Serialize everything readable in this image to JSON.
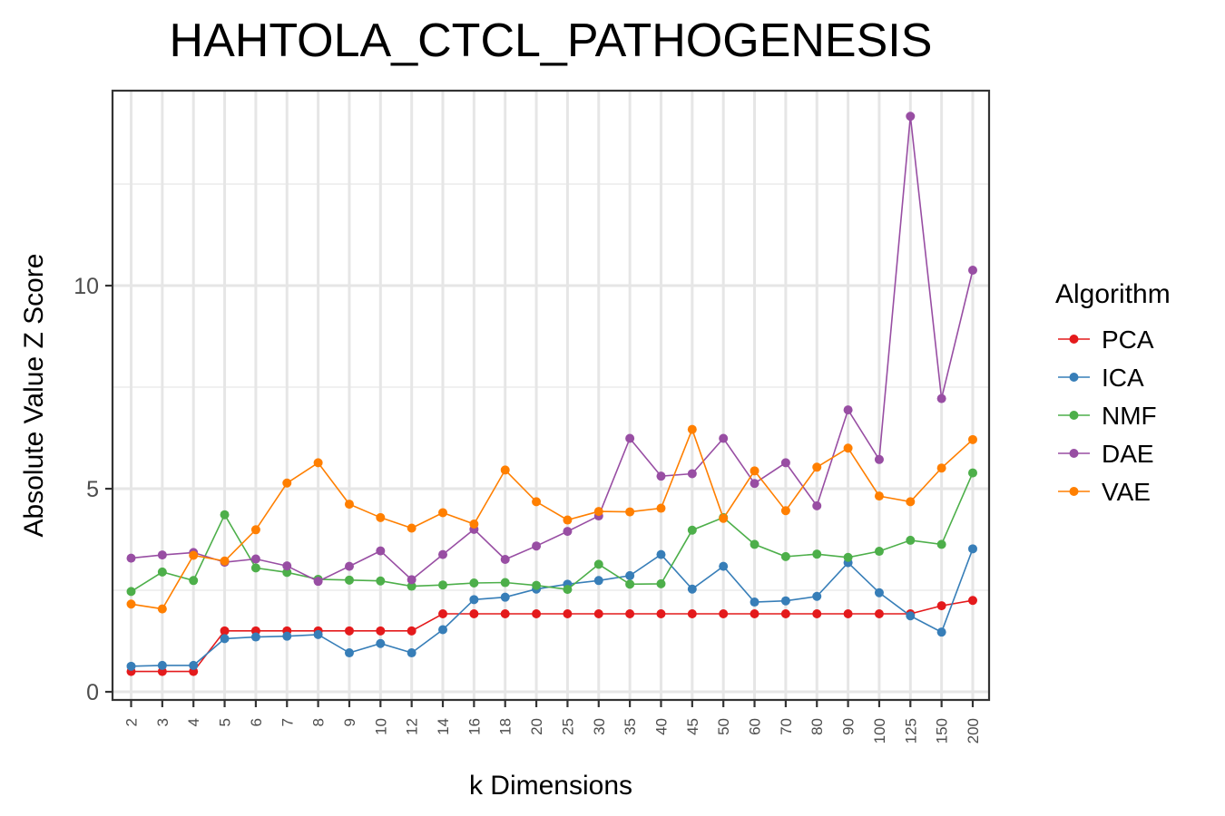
{
  "chart_data": {
    "type": "line",
    "title": "HAHTOLA_CTCL_PATHOGENESIS",
    "xlabel": "k Dimensions",
    "ylabel": "Absolute Value Z Score",
    "categories": [
      "2",
      "3",
      "4",
      "5",
      "6",
      "7",
      "8",
      "9",
      "10",
      "12",
      "14",
      "16",
      "18",
      "20",
      "25",
      "30",
      "35",
      "40",
      "45",
      "50",
      "60",
      "70",
      "80",
      "90",
      "100",
      "125",
      "150",
      "200"
    ],
    "ylim": [
      -0.2,
      14.8
    ],
    "yticks": [
      0,
      5,
      10
    ],
    "grid": true,
    "legend": {
      "title": "Algorithm",
      "position": "right"
    },
    "series": [
      {
        "name": "PCA",
        "color": "#e41a1c",
        "values": [
          0.5,
          0.5,
          0.5,
          1.5,
          1.5,
          1.5,
          1.5,
          1.5,
          1.5,
          1.5,
          1.92,
          1.92,
          1.92,
          1.92,
          1.92,
          1.92,
          1.92,
          1.92,
          1.92,
          1.92,
          1.92,
          1.92,
          1.92,
          1.92,
          1.92,
          1.92,
          2.12,
          2.25
        ]
      },
      {
        "name": "ICA",
        "color": "#377eb8",
        "values": [
          0.63,
          0.65,
          0.65,
          1.31,
          1.35,
          1.37,
          1.41,
          0.96,
          1.19,
          0.96,
          1.53,
          2.27,
          2.33,
          2.53,
          2.65,
          2.74,
          2.86,
          3.38,
          2.53,
          3.09,
          2.21,
          2.24,
          2.35,
          3.18,
          2.44,
          1.87,
          1.47,
          3.52
        ]
      },
      {
        "name": "NMF",
        "color": "#4daf4a",
        "values": [
          2.47,
          2.95,
          2.74,
          4.36,
          3.05,
          2.94,
          2.77,
          2.75,
          2.73,
          2.6,
          2.63,
          2.68,
          2.69,
          2.62,
          2.52,
          3.14,
          2.65,
          2.66,
          3.98,
          4.29,
          3.63,
          3.33,
          3.39,
          3.31,
          3.46,
          3.73,
          3.63,
          5.39
        ]
      },
      {
        "name": "DAE",
        "color": "#984ea3",
        "values": [
          3.29,
          3.37,
          3.43,
          3.19,
          3.27,
          3.1,
          2.72,
          3.09,
          3.47,
          2.76,
          3.38,
          4.0,
          3.26,
          3.59,
          3.95,
          4.33,
          6.24,
          5.31,
          5.37,
          6.24,
          5.13,
          5.64,
          4.58,
          6.94,
          5.72,
          14.17,
          7.22,
          10.38
        ]
      },
      {
        "name": "VAE",
        "color": "#ff7f00",
        "values": [
          2.16,
          2.04,
          3.36,
          3.22,
          3.99,
          5.14,
          5.64,
          4.62,
          4.29,
          4.03,
          4.41,
          4.13,
          5.46,
          4.68,
          4.23,
          4.44,
          4.43,
          4.52,
          6.46,
          4.27,
          5.44,
          4.46,
          5.53,
          6.0,
          4.82,
          4.68,
          5.51,
          6.21
        ]
      }
    ]
  }
}
